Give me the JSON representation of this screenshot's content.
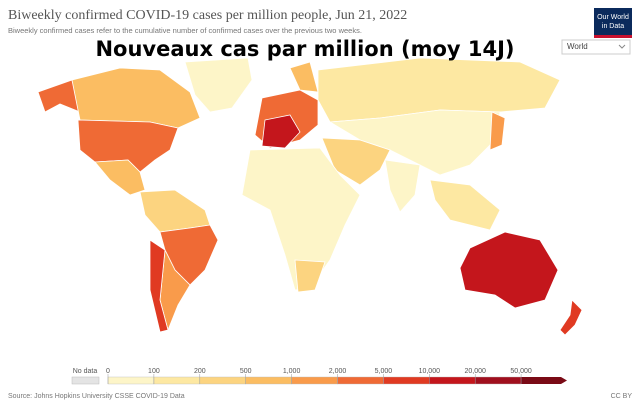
{
  "header": {
    "title": "Biweekly confirmed COVID-19 cases per million people, Jun 21, 2022",
    "subtitle": "Biweekly confirmed cases refer to the cumulative number of confirmed cases over the previous two weeks.",
    "logo": [
      "Our World",
      "in Data"
    ],
    "overlay_title": "Nouveaux cas par million (moy 14J)",
    "region_select": "World"
  },
  "legend": {
    "no_data_label": "No data",
    "no_data_color": "#e4e4e4",
    "ticks": [
      0,
      100,
      200,
      500,
      {
        "value": 1000,
        "label": "1,000"
      },
      {
        "value": 2000,
        "label": "2,000"
      },
      {
        "value": 5000,
        "label": "5,000"
      },
      {
        "value": 10000,
        "label": "10,000"
      },
      {
        "value": 20000,
        "label": "20,000"
      },
      {
        "value": 50000,
        "label": "50,000"
      }
    ],
    "colors": [
      "#fdf5c8",
      "#fde8a2",
      "#fcd480",
      "#fbbd62",
      "#f99b4b",
      "#ef6a35",
      "#e03a22",
      "#c4161c",
      "#a00f1e",
      "#7a0a16"
    ]
  },
  "footer": {
    "source": "Source: Johns Hopkins University CSSE COVID-19 Data",
    "license": "CC BY"
  }
}
